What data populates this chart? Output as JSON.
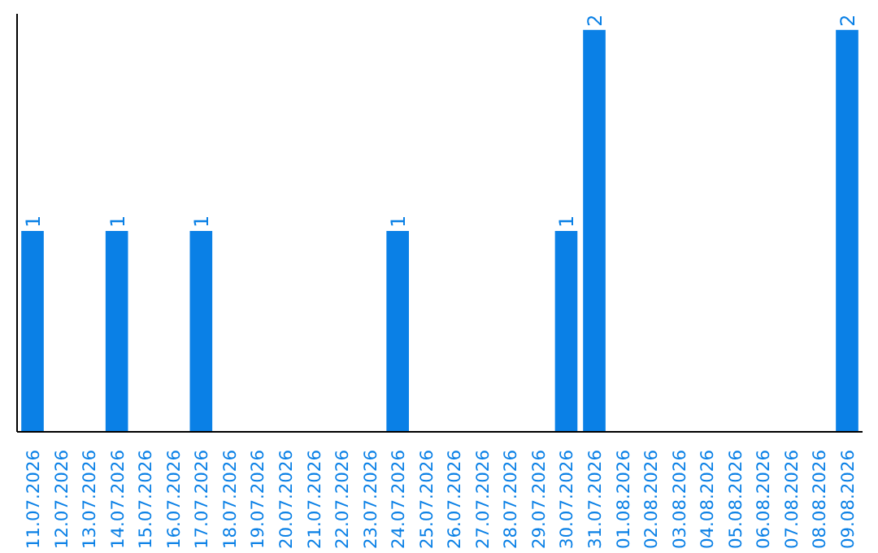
{
  "chart_data": {
    "type": "bar",
    "categories": [
      "11.07.2026",
      "12.07.2026",
      "13.07.2026",
      "14.07.2026",
      "15.07.2026",
      "16.07.2026",
      "17.07.2026",
      "18.07.2026",
      "19.07.2026",
      "20.07.2026",
      "21.07.2026",
      "22.07.2026",
      "23.07.2026",
      "24.07.2026",
      "25.07.2026",
      "26.07.2026",
      "27.07.2026",
      "28.07.2026",
      "29.07.2026",
      "30.07.2026",
      "31.07.2026",
      "01.08.2026",
      "02.08.2026",
      "03.08.2026",
      "04.08.2026",
      "05.08.2026",
      "06.08.2026",
      "07.08.2026",
      "08.08.2026",
      "09.08.2026"
    ],
    "values": [
      1,
      0,
      0,
      1,
      0,
      0,
      1,
      0,
      0,
      0,
      0,
      0,
      0,
      1,
      0,
      0,
      0,
      0,
      0,
      1,
      2,
      0,
      0,
      0,
      0,
      0,
      0,
      0,
      0,
      2
    ],
    "value_labels": [
      "1",
      null,
      null,
      "1",
      null,
      null,
      "1",
      null,
      null,
      null,
      null,
      null,
      null,
      "1",
      null,
      null,
      null,
      null,
      null,
      "1",
      "2",
      null,
      null,
      null,
      null,
      null,
      null,
      null,
      null,
      "2"
    ],
    "color": "#0a80e6",
    "ylim": [
      0,
      2.08
    ],
    "tick_labels": "x",
    "grid": false
  }
}
